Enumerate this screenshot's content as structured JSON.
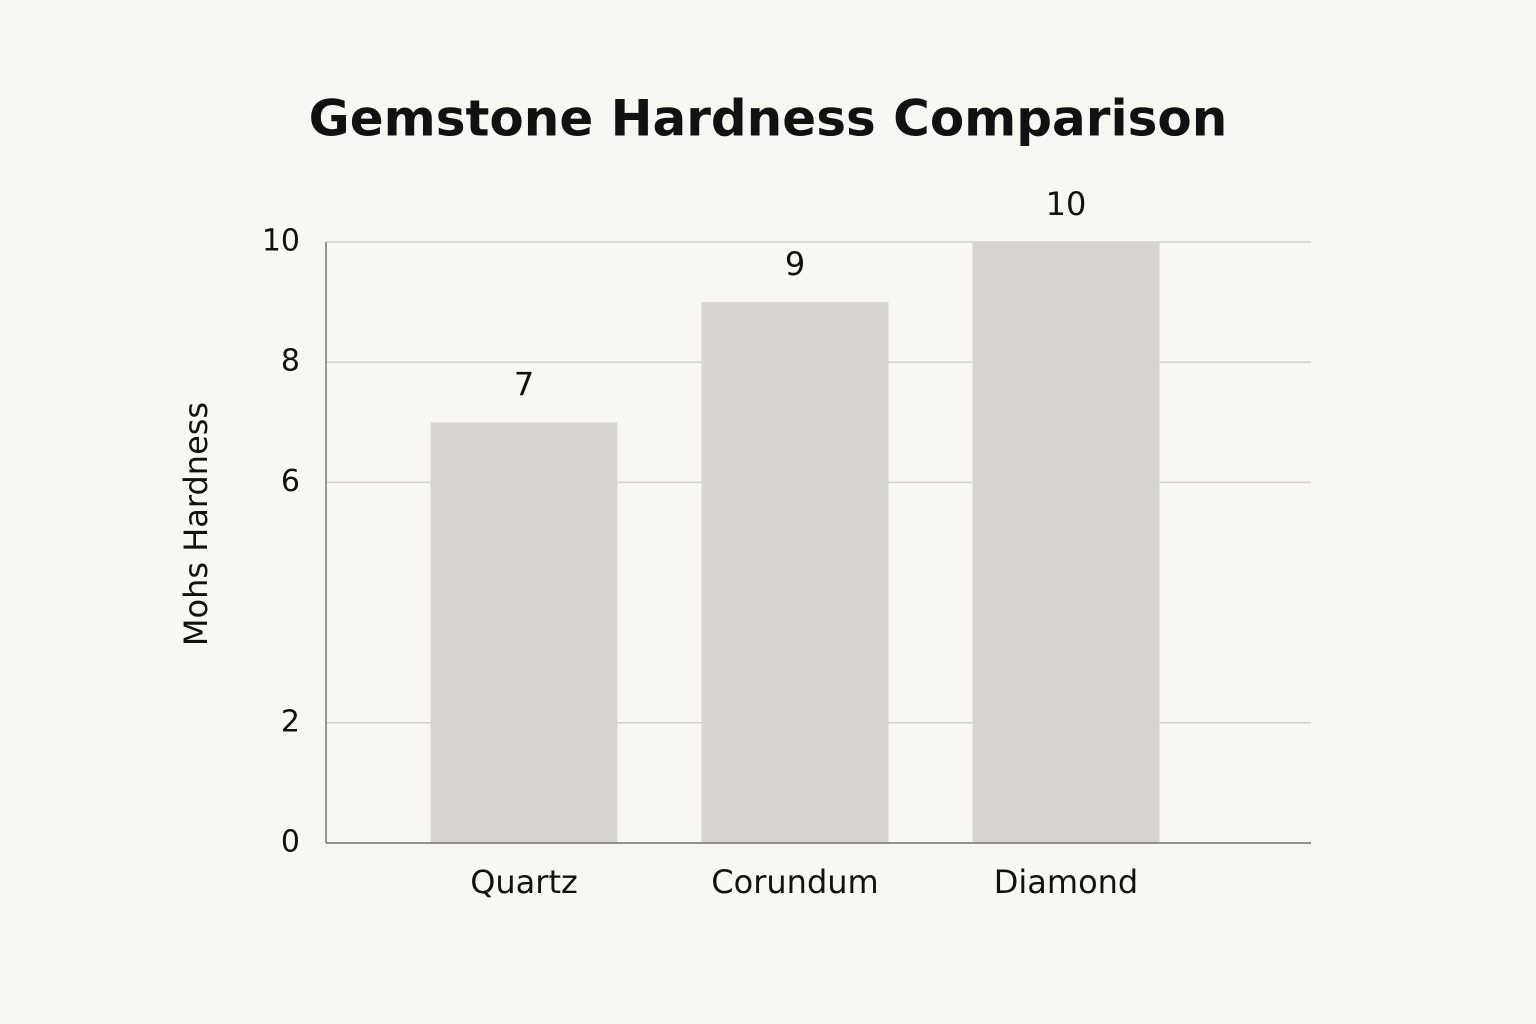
{
  "chart_data": {
    "type": "bar",
    "title": "Gemstone Hardness Comparison",
    "y_label": "Mohs Hardness",
    "categories": [
      "Quartz",
      "Corundum",
      "Diamond"
    ],
    "values": [
      7,
      9,
      10
    ],
    "color": "#d8d5d0",
    "ylim": [
      0,
      10
    ],
    "yticks": [
      0,
      2,
      6,
      8,
      10
    ],
    "grid": true
  }
}
